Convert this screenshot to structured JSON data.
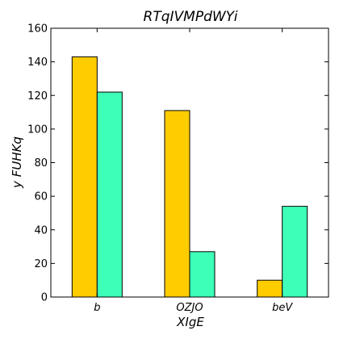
{
  "chart_data": {
    "type": "bar",
    "title": "RTqIVMPdWYi",
    "xlabel": "XIgE",
    "ylabel": "y FUHKq",
    "categories": [
      "b",
      "OZJO",
      "beV"
    ],
    "series": [
      {
        "values": [
          143,
          111,
          10
        ],
        "color": "#ffcc00"
      },
      {
        "values": [
          122,
          27,
          54
        ],
        "color": "#3dffb8"
      }
    ],
    "ylim": [
      0,
      160
    ],
    "yticks": [
      0,
      20,
      40,
      60,
      80,
      100,
      120,
      140,
      160
    ],
    "grid": false
  }
}
